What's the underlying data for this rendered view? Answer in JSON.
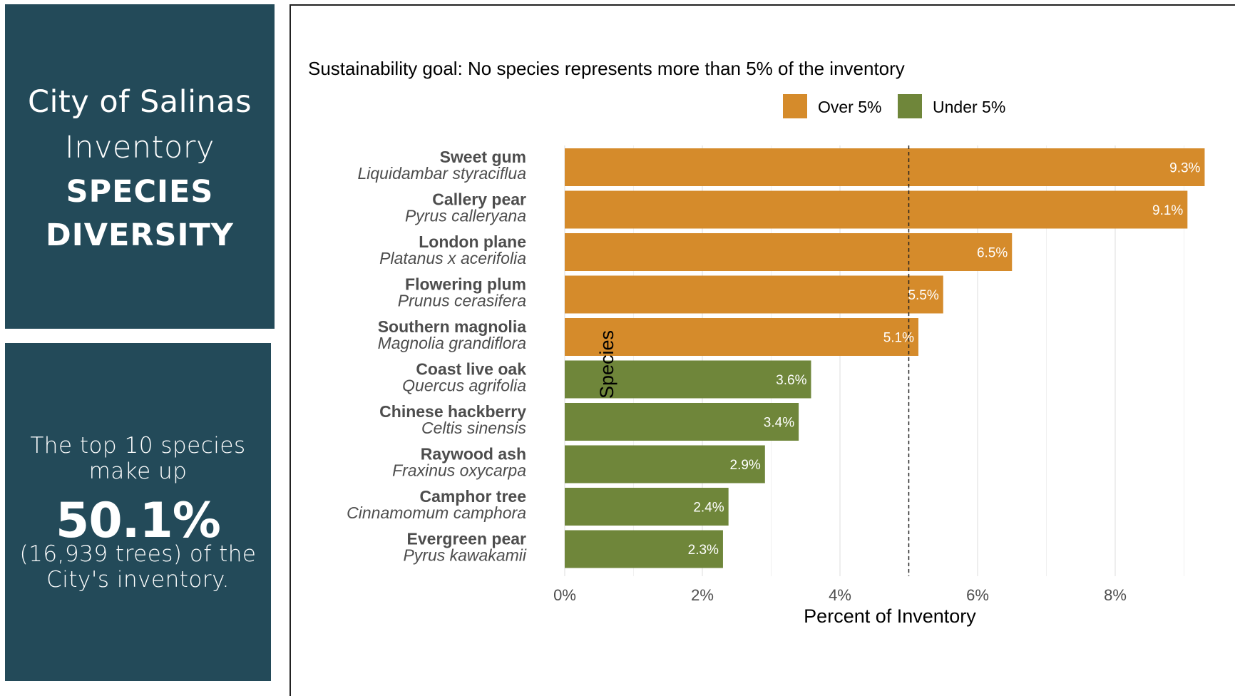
{
  "left_panel": {
    "title_line1": "City of Salinas",
    "title_line2": "Inventory",
    "title_line3": "SPECIES",
    "title_line4": "DIVERSITY",
    "stat_line1": "The top 10 species",
    "stat_line2": "make up",
    "stat_value": "50.1%",
    "stat_line3": "(16,939 trees) of the",
    "stat_line4": "City's inventory."
  },
  "colors": {
    "panel": "#234a59",
    "over": "#d58b2b",
    "under": "#6f863a"
  },
  "chart_data": {
    "type": "bar",
    "orientation": "horizontal",
    "title": "Sustainability goal: No species represents more than 5% of the inventory",
    "xlabel": "Percent of Inventory",
    "ylabel": "Species",
    "xlim": [
      0,
      9.3
    ],
    "xticks": [
      0,
      2,
      4,
      6,
      8
    ],
    "xtick_labels": [
      "0%",
      "2%",
      "4%",
      "6%",
      "8%"
    ],
    "reference_line": 5,
    "grid": true,
    "legend_position": "top",
    "legend": [
      {
        "label": "Over 5%",
        "color": "#d58b2b"
      },
      {
        "label": "Under 5%",
        "color": "#6f863a"
      }
    ],
    "categories": [
      {
        "common": "Sweet gum",
        "scientific": "Liquidambar styraciflua",
        "value": 9.3,
        "label": "9.3%",
        "group": "Over 5%"
      },
      {
        "common": "Callery pear",
        "scientific": "Pyrus calleryana",
        "value": 9.05,
        "label": "9.1%",
        "group": "Over 5%"
      },
      {
        "common": "London plane",
        "scientific": "Platanus x acerifolia",
        "value": 6.5,
        "label": "6.5%",
        "group": "Over 5%"
      },
      {
        "common": "Flowering plum",
        "scientific": "Prunus cerasifera",
        "value": 5.5,
        "label": "5.5%",
        "group": "Over 5%"
      },
      {
        "common": "Southern magnolia",
        "scientific": "Magnolia grandiflora",
        "value": 5.14,
        "label": "5.1%",
        "group": "Over 5%"
      },
      {
        "common": "Coast live oak",
        "scientific": "Quercus agrifolia",
        "value": 3.58,
        "label": "3.6%",
        "group": "Under 5%"
      },
      {
        "common": "Chinese hackberry",
        "scientific": "Celtis sinensis",
        "value": 3.4,
        "label": "3.4%",
        "group": "Under 5%"
      },
      {
        "common": "Raywood ash",
        "scientific": "Fraxinus oxycarpa",
        "value": 2.91,
        "label": "2.9%",
        "group": "Under 5%"
      },
      {
        "common": "Camphor tree",
        "scientific": "Cinnamomum camphora",
        "value": 2.38,
        "label": "2.4%",
        "group": "Under 5%"
      },
      {
        "common": "Evergreen pear",
        "scientific": "Pyrus kawakamii",
        "value": 2.3,
        "label": "2.3%",
        "group": "Under 5%"
      }
    ]
  }
}
